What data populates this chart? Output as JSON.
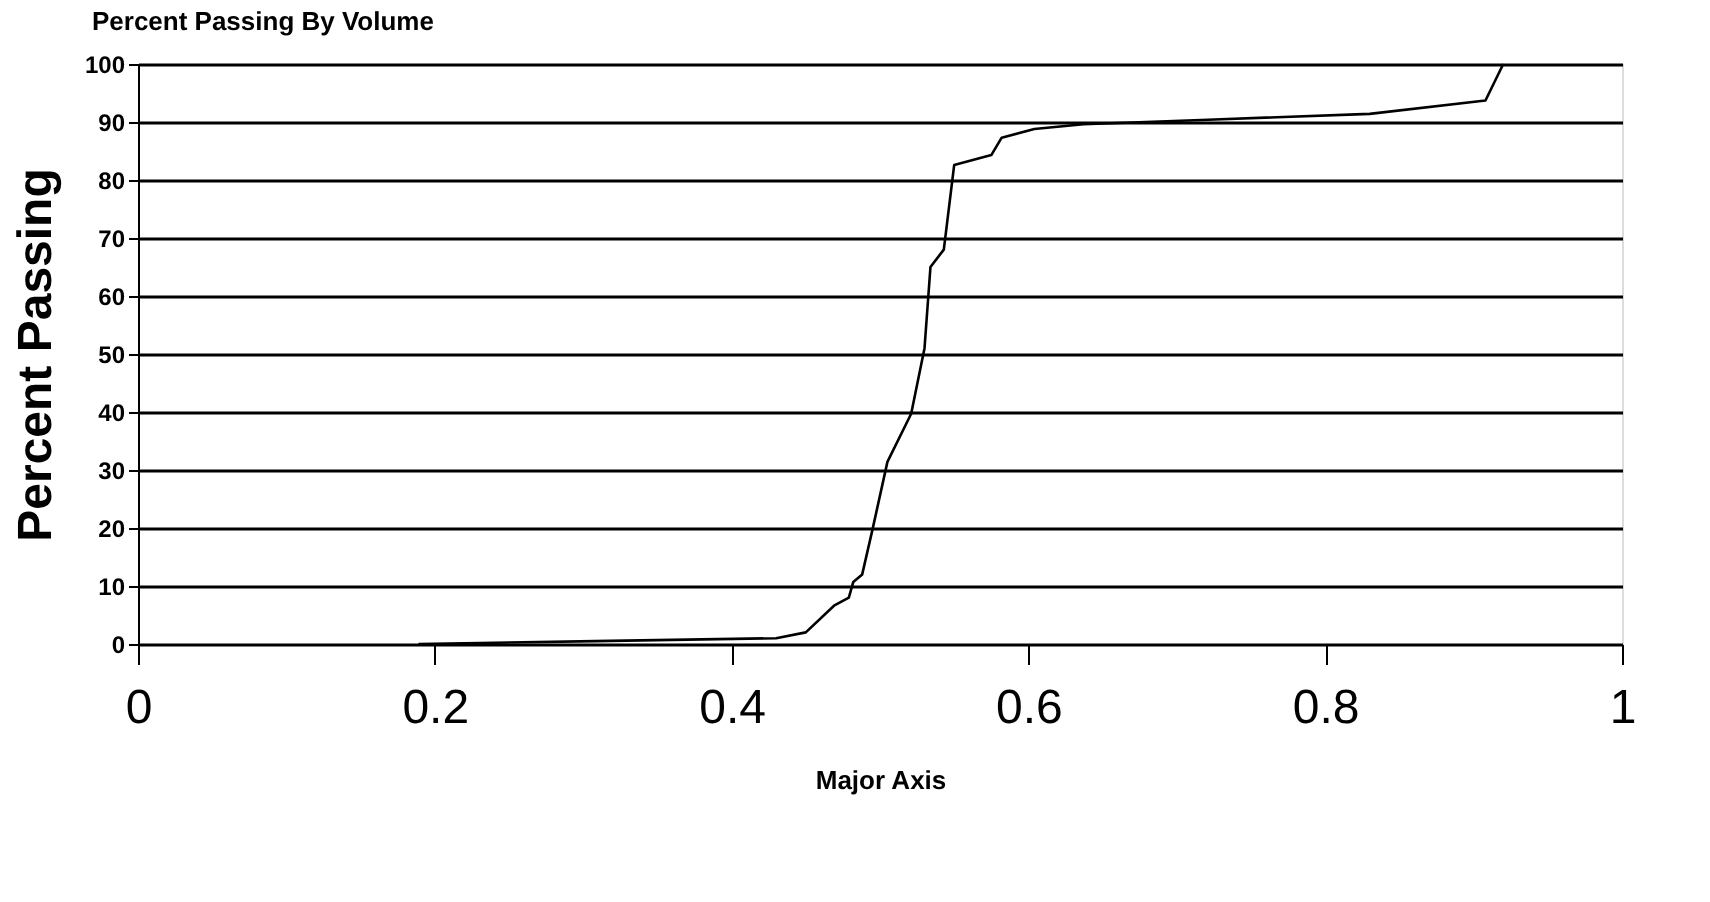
{
  "chart_data": {
    "type": "line",
    "title": "Percent Passing By Volume",
    "xlabel": "Major Axis",
    "ylabel": "Percent Passing",
    "x": [
      0.189,
      0.308,
      0.43,
      0.45,
      0.469,
      0.479,
      0.482,
      0.488,
      0.495,
      0.505,
      0.521,
      0.53,
      0.534,
      0.543,
      0.55,
      0.575,
      0.582,
      0.604,
      0.637,
      0.721,
      0.83,
      0.908,
      0.92
    ],
    "series": [
      {
        "color": "#000000",
        "values": [
          0,
          0.5,
          1,
          2,
          6.6,
          8,
          10.7,
          12,
          19.8,
          31.4,
          39.7,
          51,
          65,
          68,
          82.6,
          84.3,
          87.3,
          88.8,
          89.6,
          90.4,
          91.4,
          93.7,
          100
        ]
      }
    ],
    "xlim": [
      0,
      1
    ],
    "xticks": [
      0,
      0.2,
      0.4,
      0.6,
      0.8,
      1
    ],
    "ylim": [
      0,
      100
    ],
    "yticks": [
      0,
      10,
      20,
      30,
      40,
      50,
      60,
      70,
      80,
      90,
      100
    ],
    "grid": "y",
    "marker": "none",
    "line_style": "solid"
  }
}
